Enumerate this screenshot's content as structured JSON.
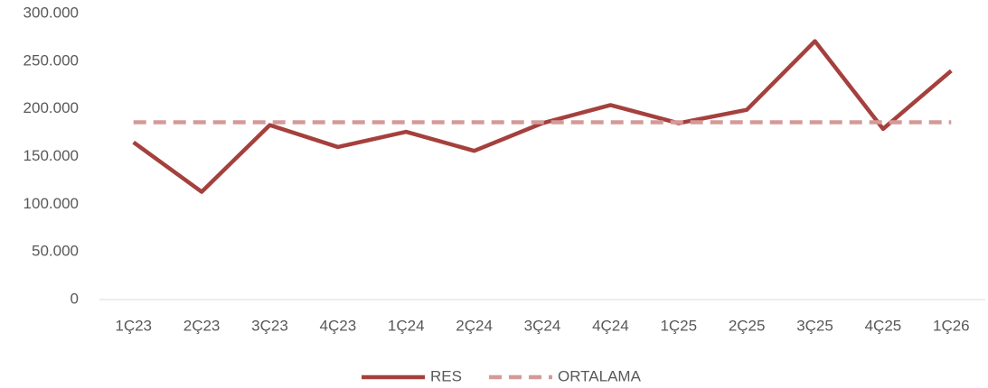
{
  "chart_data": {
    "type": "line",
    "categories": [
      "1Ç23",
      "2Ç23",
      "3Ç23",
      "4Ç23",
      "1Ç24",
      "2Ç24",
      "3Ç24",
      "4Ç24",
      "1Ç25",
      "2Ç25",
      "3Ç25",
      "4Ç25",
      "1Ç26"
    ],
    "series": [
      {
        "name": "RES",
        "color": "#a5403d",
        "dashed": false,
        "values": [
          165000,
          113000,
          183000,
          160000,
          176000,
          156000,
          185000,
          204000,
          185000,
          199000,
          271000,
          179000,
          240000
        ]
      },
      {
        "name": "ORTALAMA",
        "color": "#d49a98",
        "dashed": true,
        "values": [
          186000,
          186000,
          186000,
          186000,
          186000,
          186000,
          186000,
          186000,
          186000,
          186000,
          186000,
          186000,
          186000
        ]
      }
    ],
    "ylim": [
      0,
      300000
    ],
    "yticks": [
      0,
      {
        "value": 50000,
        "label": "50.000"
      },
      {
        "value": 100000,
        "label": "100.000"
      },
      {
        "value": 150000,
        "label": "150.000"
      },
      {
        "value": 200000,
        "label": "200.000"
      },
      {
        "value": 250000,
        "label": "250.000"
      },
      {
        "value": 300000,
        "label": "300.000"
      }
    ],
    "grid": false,
    "legend": "bottom"
  }
}
